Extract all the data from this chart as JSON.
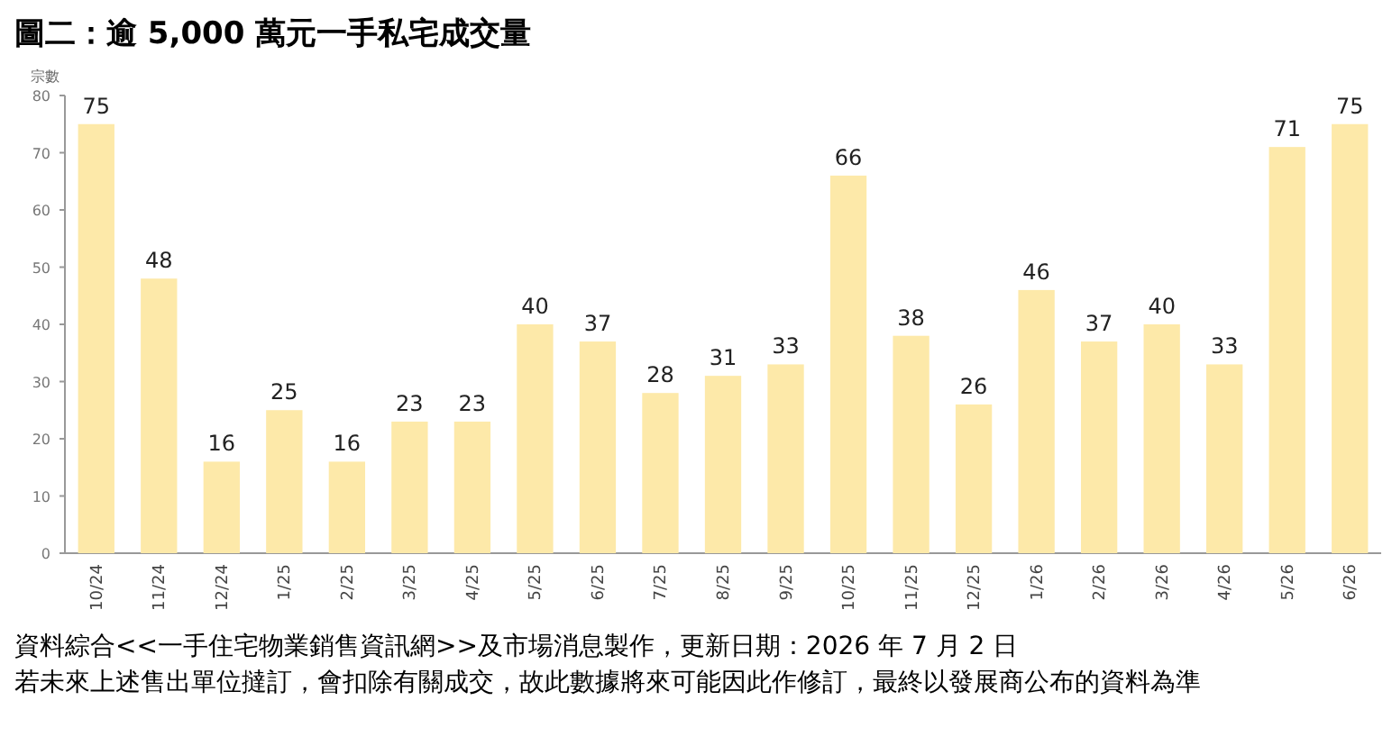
{
  "chart_data": {
    "type": "bar",
    "title": "圖二：逾 5,000 萬元一手私宅成交量",
    "ylabel": "宗數",
    "categories": [
      "10/24",
      "11/24",
      "12/24",
      "1/25",
      "2/25",
      "3/25",
      "4/25",
      "5/25",
      "6/25",
      "7/25",
      "8/25",
      "9/25",
      "10/25",
      "11/25",
      "12/25",
      "1/26",
      "2/26",
      "3/26",
      "4/26",
      "5/26",
      "6/26"
    ],
    "values": [
      75,
      48,
      16,
      25,
      16,
      23,
      23,
      40,
      37,
      28,
      31,
      33,
      66,
      38,
      26,
      46,
      37,
      40,
      33,
      71,
      75
    ],
    "color": "#fde9a9",
    "ylim": [
      0,
      80
    ],
    "yticks": [
      0,
      10,
      20,
      30,
      40,
      50,
      60,
      70,
      80
    ],
    "data_labels": true,
    "grid": false,
    "annotations": [
      "資料綜合<<一手住宅物業銷售資訊網>>及市場消息製作，更新日期：2026 年 7 月 2 日",
      "若未來上述售出單位撻訂，會扣除有關成交，故此數據將來可能因此作修訂，最終以發展商公布的資料為準"
    ]
  }
}
